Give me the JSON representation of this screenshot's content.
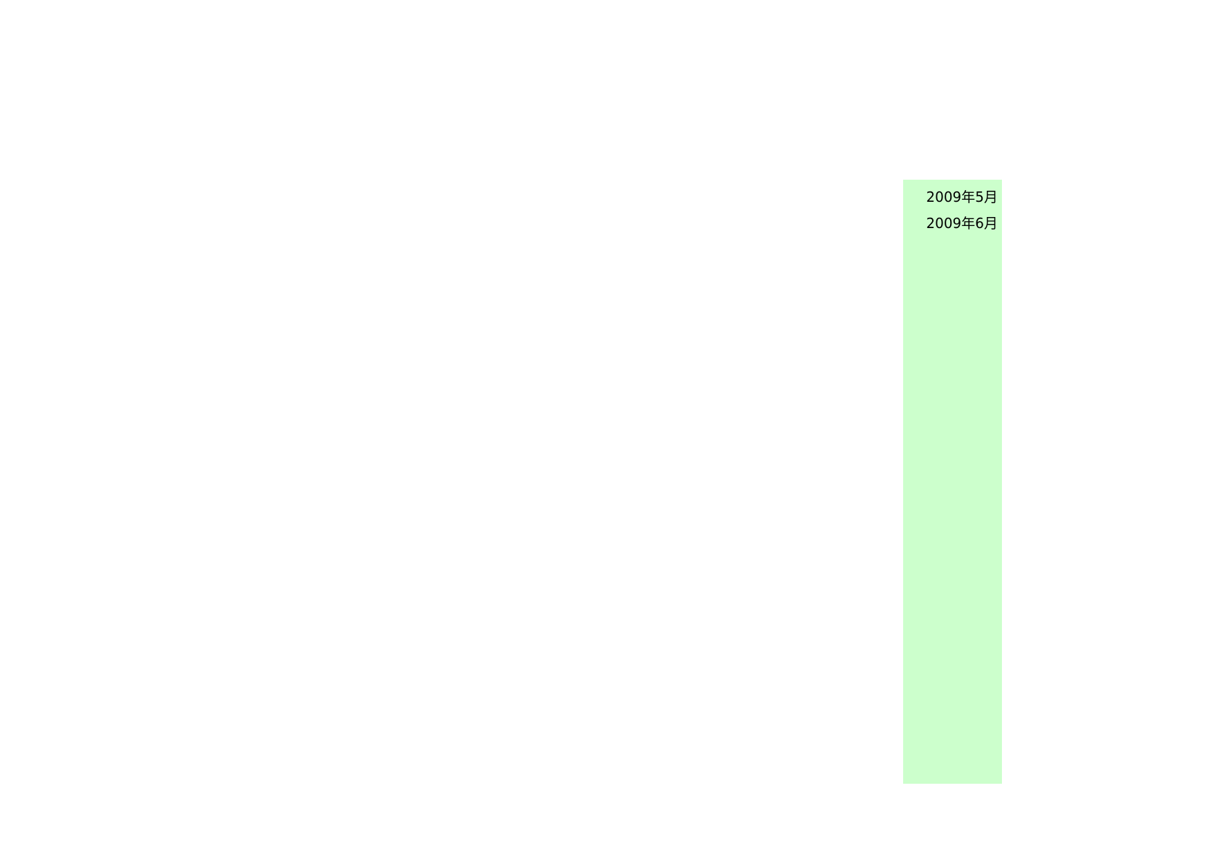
{
  "panel": {
    "background": "#ccffcc",
    "items": [
      "2009年5月",
      "2009年6月"
    ]
  }
}
